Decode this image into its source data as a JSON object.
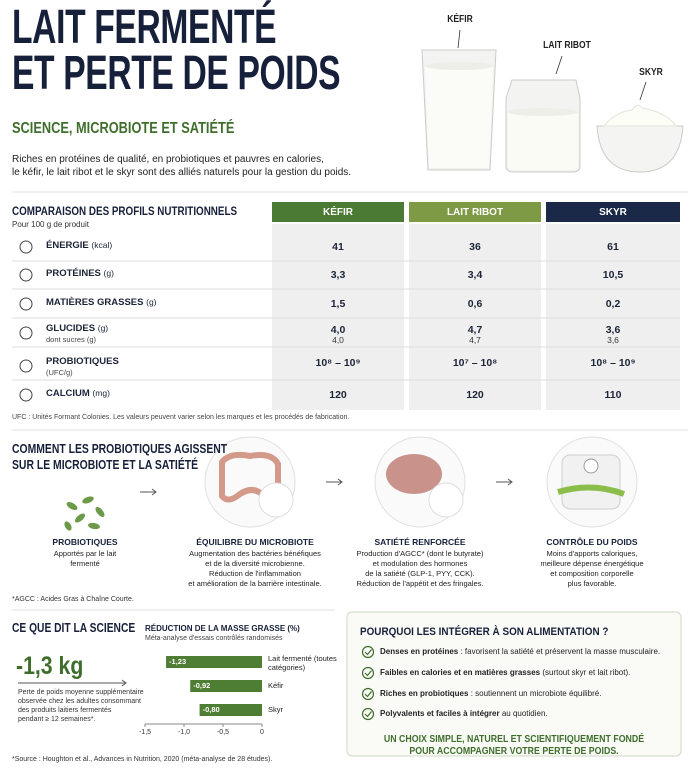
{
  "header": {
    "title_lines": [
      "LAIT FERMENTÉ",
      "ET PERTE DE POIDS"
    ],
    "subtitle": "SCIENCE, MICROBIOTE ET SATIÉTÉ",
    "intro_lines": [
      "Riches en protéines de qualité, en probiotiques et pauvres en calories,",
      "le kéfir, le lait ribot et le skyr sont des alliés naturels pour la gestion du poids."
    ]
  },
  "glass_labels": [
    "KÉFIR",
    "LAIT RIBOT",
    "SKYR"
  ],
  "table": {
    "title": "COMPARAISON DES PROFILS NUTRITIONNELS",
    "note": "Pour 100 g de produit",
    "columns": [
      "KÉFIR",
      "LAIT RIBOT",
      "SKYR"
    ],
    "rows": [
      {
        "name": "ÉNERGIE",
        "unit": "(kcal)",
        "values": [
          "41",
          "36",
          "61"
        ]
      },
      {
        "name": "PROTÉINES",
        "unit": "(g)",
        "values": [
          "3,3",
          "3,4",
          "10,5"
        ]
      },
      {
        "name": "MATIÈRES GRASSES",
        "unit": "(g)",
        "values": [
          "1,5",
          "0,6",
          "0,2"
        ]
      },
      {
        "name": "GLUCIDES",
        "unit": "(g)",
        "values": [
          "4,0",
          "4,7",
          "3,6"
        ],
        "sub": {
          "name": "dont sucres (g)",
          "values": [
            "4,0",
            "4,7",
            "3,6"
          ]
        }
      },
      {
        "name": "PROBIOTIQUES",
        "values": [
          "10⁸ – 10⁹",
          "10⁷ – 10⁸",
          "10⁸ – 10⁹"
        ],
        "sub": {
          "name": "(UFC/g)"
        }
      },
      {
        "name": "CALCIUM",
        "unit": "(mg)",
        "values": [
          "120",
          "120",
          "110"
        ]
      }
    ],
    "footnote": "UFC : Unités Formant Colonies. Les valeurs peuvent varier selon les marques et les procédés de fabrication."
  },
  "mechanism": {
    "title_lines": [
      "COMMENT LES PROBIOTIQUES AGISSENT",
      "SUR LE MICROBIOTE ET LA SATIÉTÉ"
    ],
    "steps": [
      {
        "title": "PROBIOTIQUES",
        "lines": [
          "Apportés par le lait",
          "fermenté"
        ]
      },
      {
        "title": "ÉQUILIBRE DU MICROBIOTE",
        "lines": [
          "Augmentation des bactéries bénéfiques",
          "et de la diversité microbienne.",
          "Réduction de l'inflammation",
          "et amélioration de la barrière intestinale."
        ]
      },
      {
        "title": "SATIÉTÉ RENFORCÉE",
        "lines": [
          "Production d'AGCC* (dont le butyrate)",
          "et modulation des hormones",
          "de la satiété (GLP-1, PYY, CCK).",
          "Réduction de l'appétit et des fringales."
        ]
      },
      {
        "title": "CONTRÔLE DU POIDS",
        "lines": [
          "Moins d'apports caloriques,",
          "meilleure dépense énergétique",
          "et composition corporelle",
          "plus favorable."
        ]
      }
    ],
    "footnote": "*AGCC : Acides Gras à Chaîne Courte."
  },
  "science": {
    "title": "CE QUE DIT LA SCIENCE",
    "value": "-1,3 kg",
    "description_lines": [
      "Perte de poids moyenne supplémentaire",
      "observée chez les adultes consommant",
      "des produits laitiers fermentés",
      "pendant ≥ 12 semaines*."
    ]
  },
  "chart_data": {
    "type": "bar",
    "orientation": "horizontal",
    "title": "RÉDUCTION DE LA MASSE GRASSE (%)",
    "subtitle": "Méta-analyse d'essais contrôlés randomisés",
    "categories": [
      "Lait fermenté (toutes catégories)",
      "Kéfir",
      "Skyr"
    ],
    "values": [
      -1.23,
      -0.92,
      -0.8
    ],
    "value_labels": [
      "-1,23",
      "-0,92",
      "-0,80"
    ],
    "color": "#4e7d34",
    "xlim": [
      -1.5,
      0
    ],
    "xticks": [
      {
        "value": -1.5,
        "label": "-1,5"
      },
      {
        "value": -1.0,
        "label": "-1,0"
      },
      {
        "value": -0.5,
        "label": "-0,5"
      },
      0
    ]
  },
  "why": {
    "title": "POURQUOI LES INTÉGRER À SON ALIMENTATION ?",
    "items": [
      {
        "bold": "Denses en protéines",
        "text": " : favorisent la satiété et préservent la masse musculaire."
      },
      {
        "bold": "Faibles en calories et en matières grasses",
        "text": " (surtout skyr et lait ribot)."
      },
      {
        "bold": "Riches en probiotiques",
        "text": " : soutiennent un microbiote équilibré."
      },
      {
        "bold": "Polyvalents et faciles à intégrer",
        "text": " au quotidien."
      }
    ],
    "conclusion_lines": [
      "UN CHOIX SIMPLE, NATUREL ET SCIENTIFIQUEMENT FONDÉ",
      "POUR ACCOMPAGNER VOTRE PERTE DE POIDS."
    ]
  },
  "source": "*Source : Houghton et al., Advances in Nutrition, 2020 (méta-analyse de 28 études)."
}
